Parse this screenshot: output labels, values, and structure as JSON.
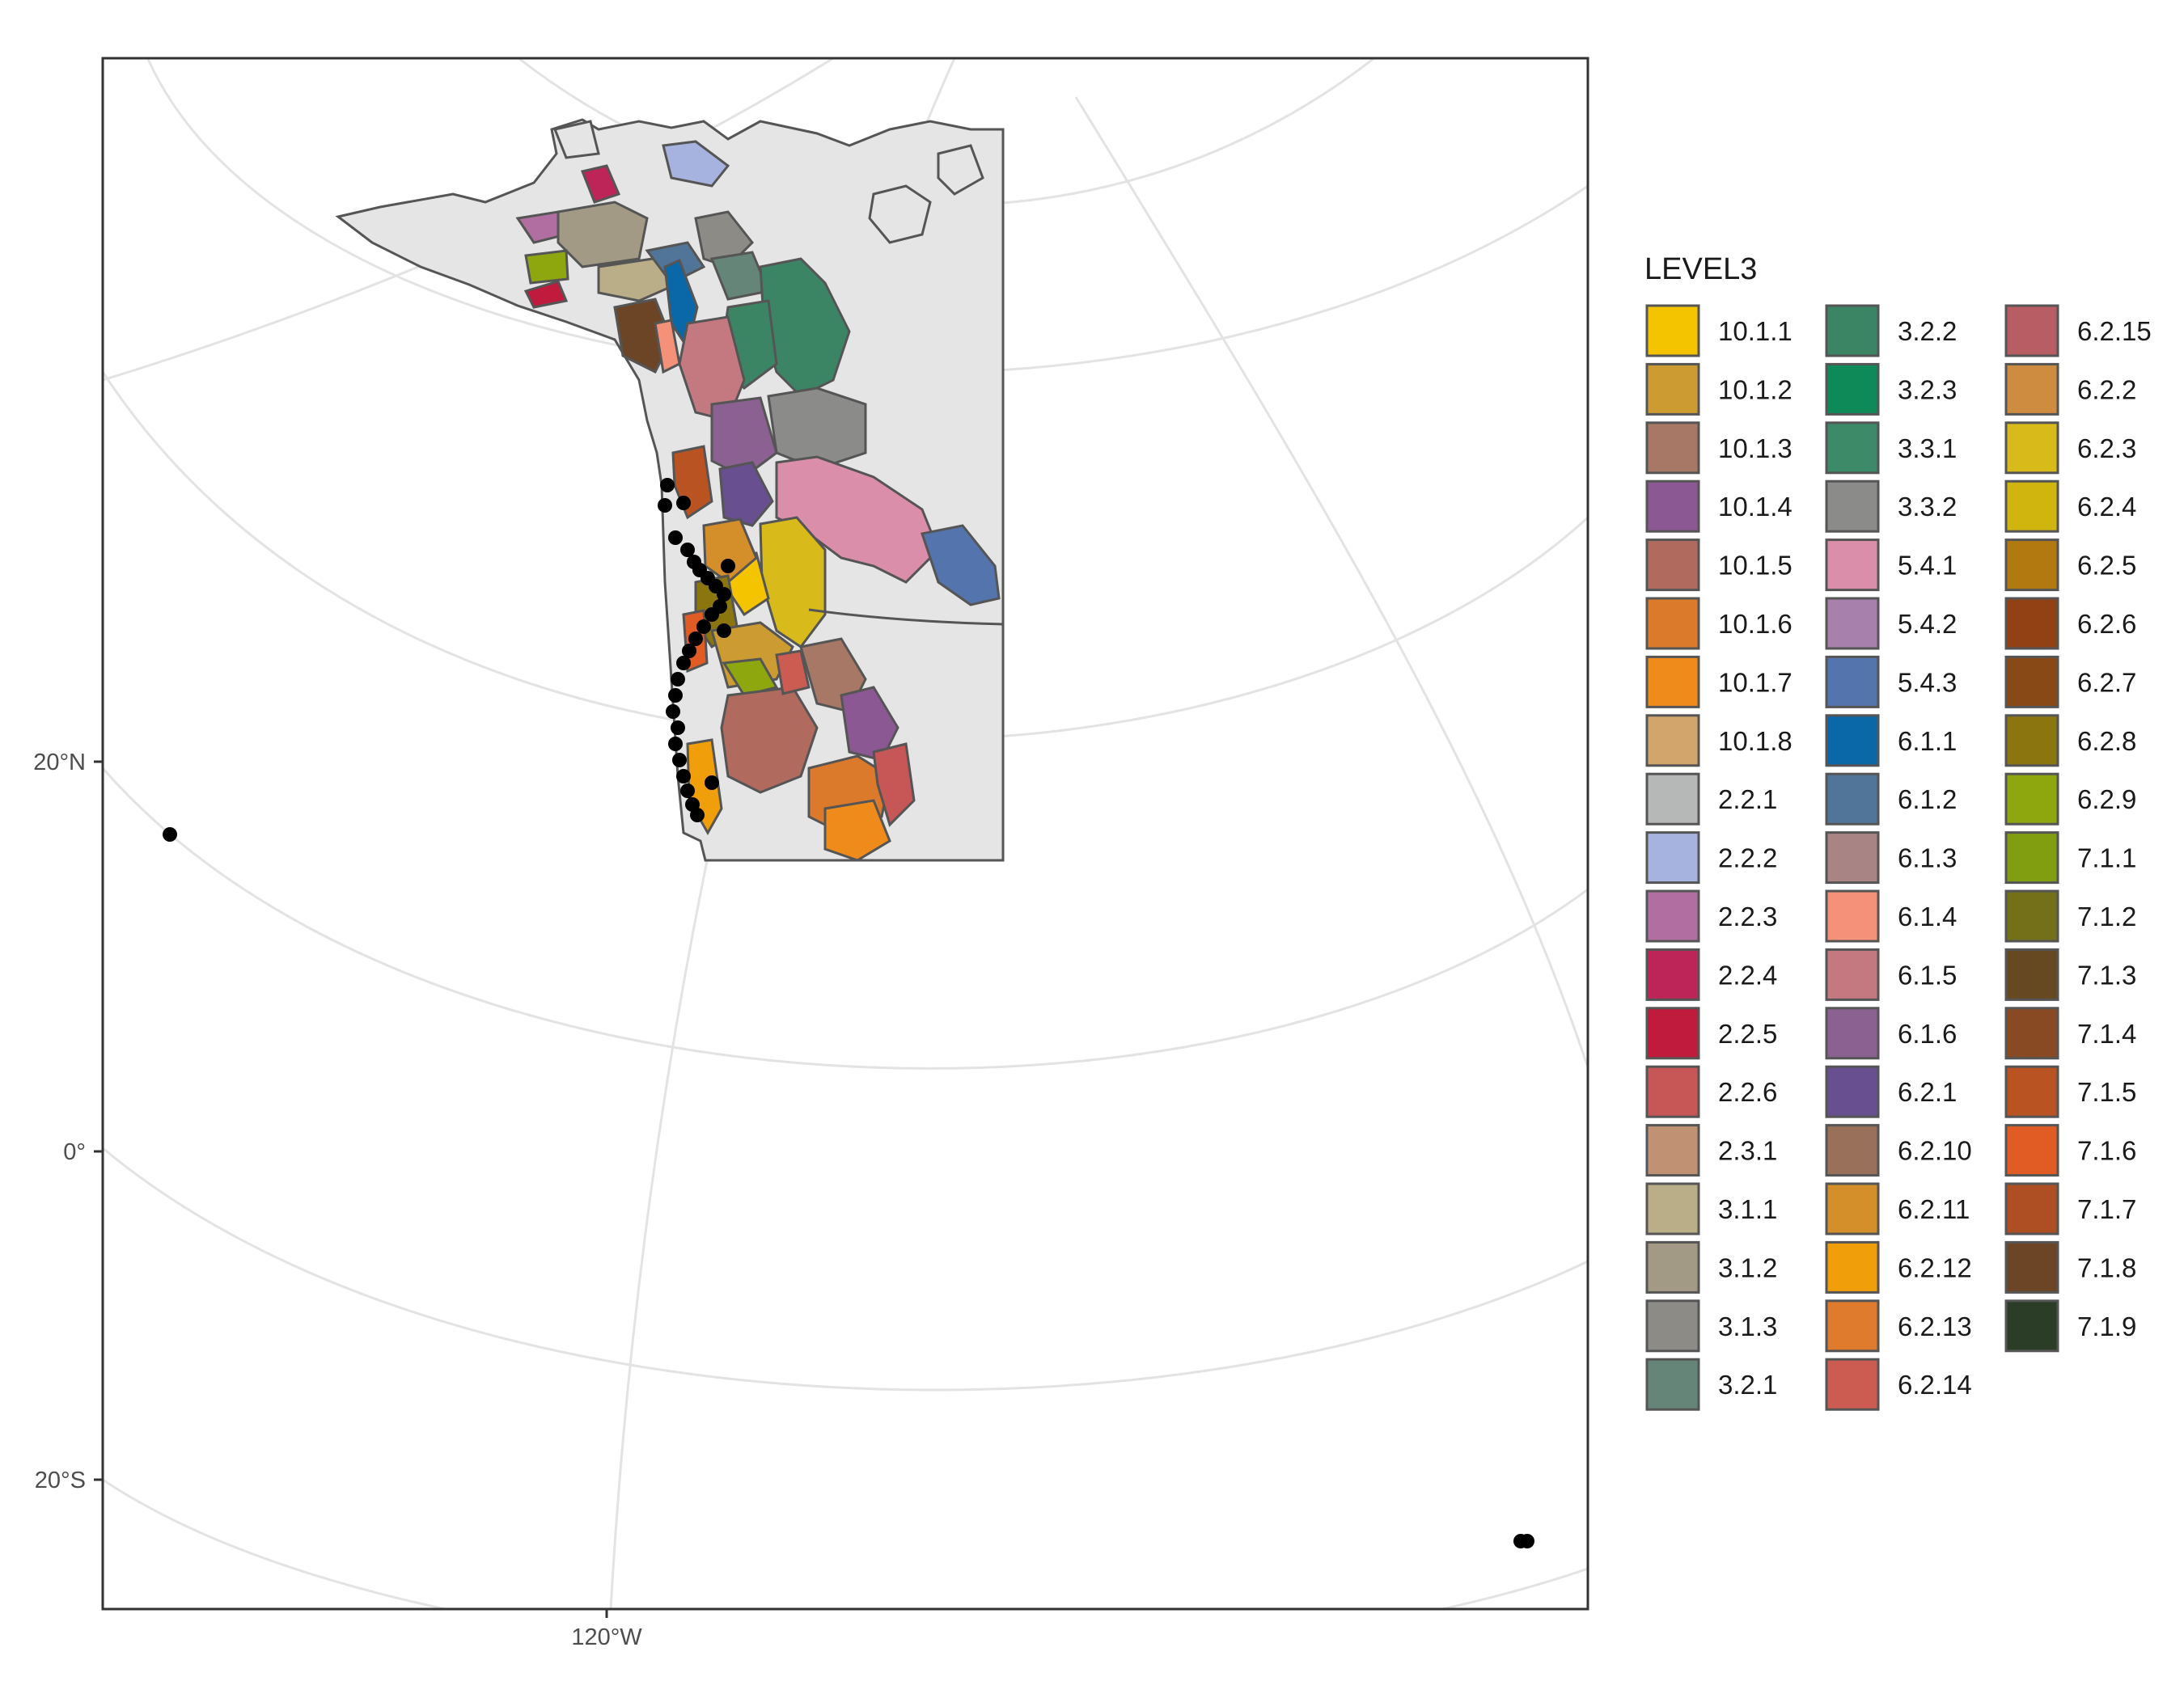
{
  "map": {
    "axis_labels": {
      "lat_20n": "20°N",
      "lat_0": "0°",
      "lat_20s": "20°S",
      "lon_120w": "120°W"
    },
    "background_color": "#e5e5e5",
    "border_color": "#555555",
    "graticule_color": "#e3e3e3",
    "occurrence_point_color": "#000000"
  },
  "legend": {
    "title": "LEVEL3",
    "items": [
      {
        "code": "10.1.1",
        "color": "#f5c400"
      },
      {
        "code": "10.1.2",
        "color": "#cc9c33"
      },
      {
        "code": "10.1.3",
        "color": "#a77866"
      },
      {
        "code": "10.1.4",
        "color": "#8c5894"
      },
      {
        "code": "10.1.5",
        "color": "#b06a5e"
      },
      {
        "code": "10.1.6",
        "color": "#dc7a2c"
      },
      {
        "code": "10.1.7",
        "color": "#ef8b1b"
      },
      {
        "code": "10.1.8",
        "color": "#d2a56c"
      },
      {
        "code": "2.2.1",
        "color": "#b5b8b7"
      },
      {
        "code": "2.2.2",
        "color": "#a6b3df"
      },
      {
        "code": "2.2.3",
        "color": "#b06fa0"
      },
      {
        "code": "2.2.4",
        "color": "#bd2558"
      },
      {
        "code": "2.2.5",
        "color": "#c01a3d"
      },
      {
        "code": "2.2.6",
        "color": "#c75656"
      },
      {
        "code": "2.3.1",
        "color": "#c09273"
      },
      {
        "code": "3.1.1",
        "color": "#b9ae88"
      },
      {
        "code": "3.1.2",
        "color": "#a29a84"
      },
      {
        "code": "3.1.3",
        "color": "#8d8b86"
      },
      {
        "code": "3.2.1",
        "color": "#648577"
      },
      {
        "code": "3.2.2",
        "color": "#3b8565"
      },
      {
        "code": "3.2.3",
        "color": "#0e8a58"
      },
      {
        "code": "3.3.1",
        "color": "#3c8a68"
      },
      {
        "code": "3.3.2",
        "color": "#8b8b8a"
      },
      {
        "code": "5.4.1",
        "color": "#db8eaa"
      },
      {
        "code": "5.4.2",
        "color": "#a781ab"
      },
      {
        "code": "5.4.3",
        "color": "#5474ad"
      },
      {
        "code": "6.1.1",
        "color": "#0a67a8"
      },
      {
        "code": "6.1.2",
        "color": "#517599"
      },
      {
        "code": "6.1.3",
        "color": "#a88485"
      },
      {
        "code": "6.1.4",
        "color": "#f59079"
      },
      {
        "code": "6.1.5",
        "color": "#c47981"
      },
      {
        "code": "6.1.6",
        "color": "#8a6190"
      },
      {
        "code": "6.2.1",
        "color": "#684f90"
      },
      {
        "code": "6.2.10",
        "color": "#99705a"
      },
      {
        "code": "6.2.11",
        "color": "#d48e2a"
      },
      {
        "code": "6.2.12",
        "color": "#f19e0b"
      },
      {
        "code": "6.2.13",
        "color": "#de7b2c"
      },
      {
        "code": "6.2.14",
        "color": "#cc5c51"
      },
      {
        "code": "6.2.15",
        "color": "#b95d64"
      },
      {
        "code": "6.2.2",
        "color": "#cd8c3f"
      },
      {
        "code": "6.2.3",
        "color": "#d8ba1a"
      },
      {
        "code": "6.2.4",
        "color": "#cfb50e"
      },
      {
        "code": "6.2.5",
        "color": "#b1790f"
      },
      {
        "code": "6.2.6",
        "color": "#914114"
      },
      {
        "code": "6.2.7",
        "color": "#894916"
      },
      {
        "code": "6.2.8",
        "color": "#8b750f"
      },
      {
        "code": "6.2.9",
        "color": "#8ea70f"
      },
      {
        "code": "7.1.1",
        "color": "#819d10"
      },
      {
        "code": "7.1.2",
        "color": "#737019"
      },
      {
        "code": "7.1.3",
        "color": "#664920"
      },
      {
        "code": "7.1.4",
        "color": "#874a23"
      },
      {
        "code": "7.1.5",
        "color": "#b95322"
      },
      {
        "code": "7.1.6",
        "color": "#e05c24"
      },
      {
        "code": "7.1.7",
        "color": "#ad4f23"
      },
      {
        "code": "7.1.8",
        "color": "#6b4525"
      },
      {
        "code": "7.1.9",
        "color": "#2b3d27"
      }
    ]
  }
}
